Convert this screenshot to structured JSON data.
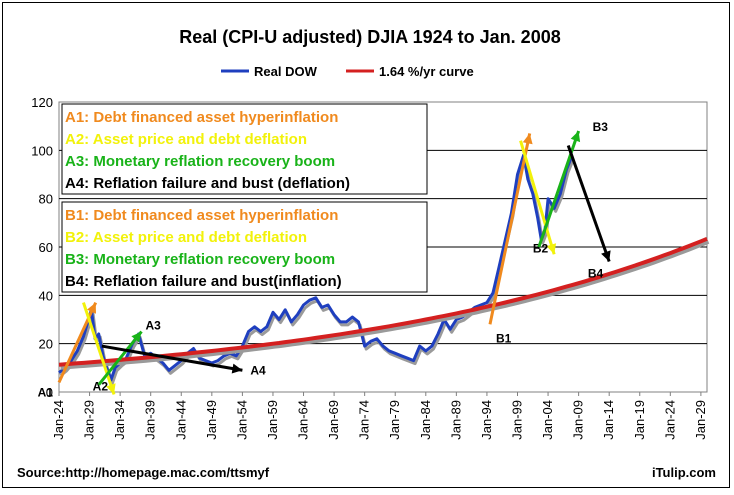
{
  "chart_data": {
    "type": "line",
    "title": "Real (CPI-U adjusted) DJIA 1924 to Jan. 2008",
    "xlabel": "",
    "ylabel": "",
    "xlim": [
      1924,
      2030
    ],
    "ylim": [
      0,
      120
    ],
    "yticks": [
      0,
      20,
      40,
      60,
      80,
      100,
      120
    ],
    "xticks": [
      {
        "year": 1924,
        "label": "Jan-24"
      },
      {
        "year": 1929,
        "label": "Jan-29"
      },
      {
        "year": 1934,
        "label": "Jan-34"
      },
      {
        "year": 1939,
        "label": "Jan-39"
      },
      {
        "year": 1944,
        "label": "Jan-44"
      },
      {
        "year": 1949,
        "label": "Jan-49"
      },
      {
        "year": 1954,
        "label": "Jan-54"
      },
      {
        "year": 1959,
        "label": "Jan-59"
      },
      {
        "year": 1964,
        "label": "Jan-64"
      },
      {
        "year": 1969,
        "label": "Jan-69"
      },
      {
        "year": 1974,
        "label": "Jan-74"
      },
      {
        "year": 1979,
        "label": "Jan-79"
      },
      {
        "year": 1984,
        "label": "Jan-84"
      },
      {
        "year": 1989,
        "label": "Jan-89"
      },
      {
        "year": 1994,
        "label": "Jan-94"
      },
      {
        "year": 1999,
        "label": "Jan-99"
      },
      {
        "year": 2004,
        "label": "Jan-04"
      },
      {
        "year": 2009,
        "label": "Jan-09"
      },
      {
        "year": 2014,
        "label": "Jan-14"
      },
      {
        "year": 2019,
        "label": "Jan-19"
      },
      {
        "year": 2024,
        "label": "Jan-24"
      },
      {
        "year": 2029,
        "label": "Jan-29"
      }
    ],
    "grid": "horizontal",
    "legend_position": "top-center",
    "series": [
      {
        "name": "Real DOW",
        "color": "#1f3fbf",
        "points": [
          [
            1924,
            8
          ],
          [
            1925,
            10
          ],
          [
            1926,
            13
          ],
          [
            1927,
            17
          ],
          [
            1928,
            23
          ],
          [
            1929.3,
            34
          ],
          [
            1929.9,
            22
          ],
          [
            1930.5,
            24
          ],
          [
            1931.2,
            15
          ],
          [
            1931.8,
            10
          ],
          [
            1932.5,
            5
          ],
          [
            1933.2,
            10
          ],
          [
            1934,
            12
          ],
          [
            1935,
            14
          ],
          [
            1936,
            20
          ],
          [
            1937,
            24
          ],
          [
            1938,
            15
          ],
          [
            1939,
            16
          ],
          [
            1940,
            14
          ],
          [
            1941,
            12
          ],
          [
            1942,
            9
          ],
          [
            1943,
            11
          ],
          [
            1944,
            13
          ],
          [
            1945,
            16
          ],
          [
            1946,
            18
          ],
          [
            1947,
            14
          ],
          [
            1948,
            13
          ],
          [
            1949,
            12
          ],
          [
            1950,
            13
          ],
          [
            1951,
            15
          ],
          [
            1952,
            16
          ],
          [
            1953,
            15
          ],
          [
            1954,
            19
          ],
          [
            1955,
            25
          ],
          [
            1956,
            27
          ],
          [
            1957,
            25
          ],
          [
            1958,
            27
          ],
          [
            1959,
            33
          ],
          [
            1960,
            30
          ],
          [
            1961,
            34
          ],
          [
            1962,
            29
          ],
          [
            1963,
            32
          ],
          [
            1964,
            36
          ],
          [
            1965,
            38
          ],
          [
            1966,
            39
          ],
          [
            1967,
            35
          ],
          [
            1968,
            36
          ],
          [
            1969,
            32
          ],
          [
            1970,
            29
          ],
          [
            1971,
            29
          ],
          [
            1972,
            31
          ],
          [
            1973,
            29
          ],
          [
            1974,
            19
          ],
          [
            1975,
            21
          ],
          [
            1976,
            22
          ],
          [
            1977,
            19
          ],
          [
            1978,
            17
          ],
          [
            1979,
            16
          ],
          [
            1980,
            15
          ],
          [
            1981,
            14
          ],
          [
            1982,
            13
          ],
          [
            1983,
            19
          ],
          [
            1984,
            17
          ],
          [
            1985,
            19
          ],
          [
            1986,
            24
          ],
          [
            1987,
            30
          ],
          [
            1988,
            26
          ],
          [
            1989,
            30
          ],
          [
            1990,
            31
          ],
          [
            1991,
            33
          ],
          [
            1992,
            35
          ],
          [
            1993,
            36
          ],
          [
            1994,
            37
          ],
          [
            1995,
            41
          ],
          [
            1996,
            52
          ],
          [
            1997,
            63
          ],
          [
            1998,
            74
          ],
          [
            1999,
            90
          ],
          [
            2000,
            98
          ],
          [
            2000.7,
            88
          ],
          [
            2001.5,
            82
          ],
          [
            2002.3,
            72
          ],
          [
            2002.9,
            63
          ],
          [
            2003.5,
            67
          ],
          [
            2004,
            80
          ],
          [
            2005,
            76
          ],
          [
            2006,
            82
          ],
          [
            2007,
            92
          ],
          [
            2007.8,
            97
          ]
        ]
      },
      {
        "name": "1.64 %/yr curve",
        "color": "#d42020",
        "rate_percent_per_year": 1.64,
        "start": [
          1924,
          11.3
        ],
        "end": [
          2030,
          63.6
        ]
      }
    ],
    "annotation_boxes": [
      {
        "lines": [
          {
            "text": "A1: Debt financed asset hyperinflation",
            "color": "#f08a1e"
          },
          {
            "text": "A2: Asset price and debt deflation",
            "color": "#f2f20a"
          },
          {
            "text": "A3: Monetary reflation recovery boom",
            "color": "#19b319"
          },
          {
            "text": "A4: Reflation failure and bust (deflation)",
            "color": "#000000"
          }
        ]
      },
      {
        "lines": [
          {
            "text": "B1: Debt financed asset hyperinflation",
            "color": "#f08a1e"
          },
          {
            "text": "B2: Asset price and debt deflation",
            "color": "#f2f20a"
          },
          {
            "text": "B3: Monetary reflation recovery boom",
            "color": "#19b319"
          },
          {
            "text": "B4: Reflation failure and bust(inflation)",
            "color": "#000000"
          }
        ]
      }
    ],
    "arrows": [
      {
        "label": "A1",
        "color": "#f08a1e",
        "from": [
          1924,
          4
        ],
        "to": [
          1930,
          37
        ]
      },
      {
        "label": "A2",
        "color": "#f2f20a",
        "from": [
          1928,
          37
        ],
        "to": [
          1933,
          -1
        ]
      },
      {
        "label": "A3",
        "color": "#19b319",
        "from": [
          1930.5,
          3
        ],
        "to": [
          1937.5,
          25
        ]
      },
      {
        "label": "A4",
        "color": "#000000",
        "from": [
          1931,
          19
        ],
        "to": [
          1954,
          9
        ]
      },
      {
        "label": "B1",
        "color": "#f08a1e",
        "from": [
          1994.5,
          28
        ],
        "to": [
          2001,
          107
        ]
      },
      {
        "label": "B2",
        "color": "#f2f20a",
        "from": [
          1999.5,
          104
        ],
        "to": [
          2005,
          57
        ]
      },
      {
        "label": "B3",
        "color": "#19b319",
        "from": [
          2002.5,
          60
        ],
        "to": [
          2009,
          108
        ]
      },
      {
        "label": "B4",
        "color": "#000000",
        "from": [
          2007.3,
          102
        ],
        "to": [
          2014,
          54
        ]
      }
    ]
  },
  "legend": {
    "real_dow": "Real DOW",
    "curve": "1.64 %/yr curve"
  },
  "footer": {
    "source": "Source:http://homepage.mac.com/ttsmyf",
    "brand": "iTulip.com"
  }
}
